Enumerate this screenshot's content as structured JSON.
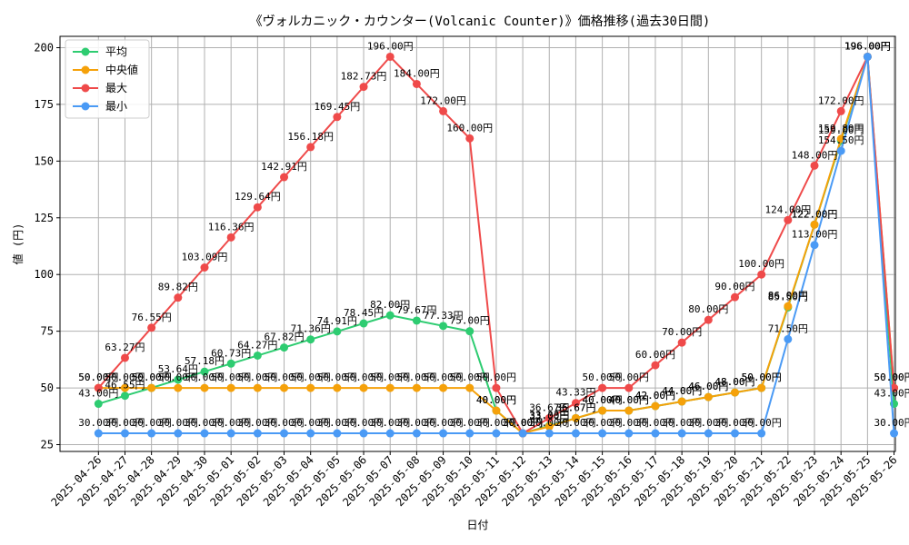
{
  "chart_data": {
    "type": "line",
    "title": "《ヴォルカニック・カウンター(Volcanic Counter)》価格推移(過去30日間)",
    "xlabel": "日付",
    "ylabel": "値 (円)",
    "ylim": [
      22,
      205
    ],
    "yticks": [
      25,
      50,
      75,
      100,
      125,
      150,
      175,
      200
    ],
    "grid": true,
    "legend_position": "top-left",
    "value_suffix": "円",
    "categories": [
      "2025-04-26",
      "2025-04-27",
      "2025-04-28",
      "2025-04-29",
      "2025-04-30",
      "2025-05-01",
      "2025-05-02",
      "2025-05-03",
      "2025-05-04",
      "2025-05-05",
      "2025-05-06",
      "2025-05-07",
      "2025-05-08",
      "2025-05-09",
      "2025-05-10",
      "2025-05-11",
      "2025-05-12",
      "2025-05-13",
      "2025-05-14",
      "2025-05-15",
      "2025-05-16",
      "2025-05-17",
      "2025-05-18",
      "2025-05-19",
      "2025-05-20",
      "2025-05-21",
      "2025-05-22",
      "2025-05-23",
      "2025-05-24",
      "2025-05-25",
      "2025-05-26"
    ],
    "series": [
      {
        "name": "平均",
        "color": "#2ecc71",
        "values": [
          43.0,
          46.55,
          50.0,
          53.64,
          57.18,
          60.73,
          64.27,
          67.82,
          71.36,
          74.91,
          78.45,
          82.0,
          79.67,
          77.33,
          75.0,
          40.0,
          30.0,
          33.33,
          36.67,
          40.0,
          40.0,
          42.0,
          44.0,
          46.0,
          48.0,
          50.0,
          85.5,
          122.0,
          159.0,
          196.0,
          43.0
        ]
      },
      {
        "name": "中央値",
        "color": "#f5a10a",
        "values": [
          50.0,
          50.0,
          50.0,
          50.0,
          50.0,
          50.0,
          50.0,
          50.0,
          50.0,
          50.0,
          50.0,
          50.0,
          50.0,
          50.0,
          50.0,
          40.0,
          30.0,
          33.0,
          36.67,
          40.0,
          40.0,
          42.0,
          44.0,
          46.0,
          48.0,
          50.0,
          86.0,
          122.0,
          159.8,
          196.0,
          50.0
        ]
      },
      {
        "name": "最大",
        "color": "#ef4a4a",
        "values": [
          50.0,
          63.27,
          76.55,
          89.82,
          103.09,
          116.36,
          129.64,
          142.91,
          156.18,
          169.45,
          182.73,
          196.0,
          184.0,
          172.0,
          160.0,
          50.0,
          30.0,
          36.67,
          43.33,
          50.0,
          50.0,
          60.0,
          70.0,
          80.0,
          90.0,
          100.0,
          124.0,
          148.0,
          172.0,
          196.0,
          50.0
        ]
      },
      {
        "name": "最小",
        "color": "#4a9af5",
        "values": [
          30.0,
          30.0,
          30.0,
          30.0,
          30.0,
          30.0,
          30.0,
          30.0,
          30.0,
          30.0,
          30.0,
          30.0,
          30.0,
          30.0,
          30.0,
          30.0,
          30.0,
          30.0,
          30.0,
          30.0,
          30.0,
          30.0,
          30.0,
          30.0,
          30.0,
          30.0,
          71.5,
          113.0,
          154.5,
          196.0,
          30.0
        ]
      }
    ]
  }
}
